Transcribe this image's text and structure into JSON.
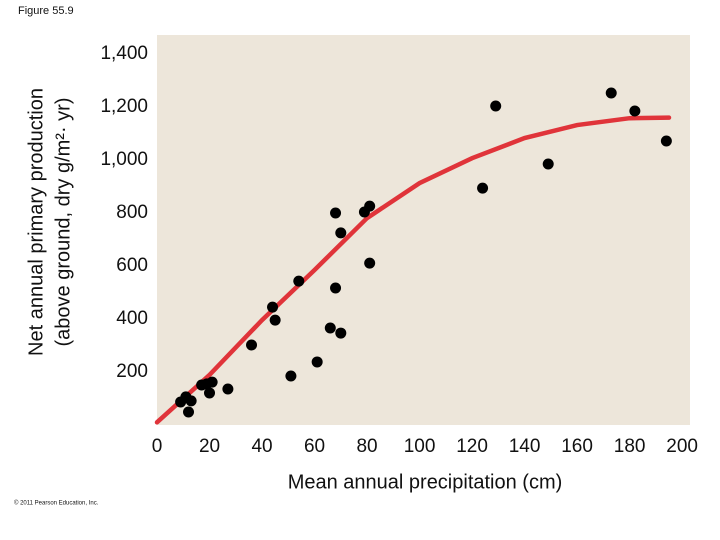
{
  "figure_label": "Figure 55.9",
  "copyright": "© 2011 Pearson Education, Inc.",
  "chart_data": {
    "type": "scatter",
    "x_label": "Mean annual precipitation (cm)",
    "y_label": [
      "Net annual primary production",
      "(above ground, dry g/m²· yr)"
    ],
    "xlim": [
      0,
      203
    ],
    "ylim": [
      0,
      1472
    ],
    "xticks": [
      0,
      20,
      40,
      60,
      80,
      100,
      120,
      140,
      160,
      180,
      200
    ],
    "yticks": [
      200,
      400,
      600,
      800,
      {
        "value": 1000,
        "label": "1,000"
      },
      {
        "value": 1200,
        "label": "1,200"
      },
      {
        "value": 1400,
        "label": "1,400"
      }
    ],
    "background": "#ede6da",
    "series": [
      {
        "type": "scatter",
        "color": "#000000",
        "x": [
          9,
          11,
          12,
          13,
          17,
          19,
          20,
          21,
          27,
          36,
          44,
          45,
          51,
          54,
          61,
          66,
          68,
          68,
          70,
          70,
          79,
          81,
          81,
          124,
          129,
          149,
          173,
          182,
          194
        ],
        "values": [
          87,
          106,
          49,
          91,
          151,
          155,
          121,
          162,
          136,
          302,
          445,
          396,
          185,
          543,
          238,
          366,
          800,
          517,
          347,
          725,
          804,
          826,
          611,
          894,
          1204,
          985,
          1253,
          1185,
          1072
        ]
      },
      {
        "type": "line",
        "color": "#e0343a",
        "x": [
          0,
          20,
          40,
          60,
          80,
          100,
          120,
          140,
          160,
          180,
          195
        ],
        "values": [
          10,
          189,
          396,
          585,
          781,
          913,
          1007,
          1083,
          1132,
          1158,
          1160
        ]
      }
    ]
  }
}
